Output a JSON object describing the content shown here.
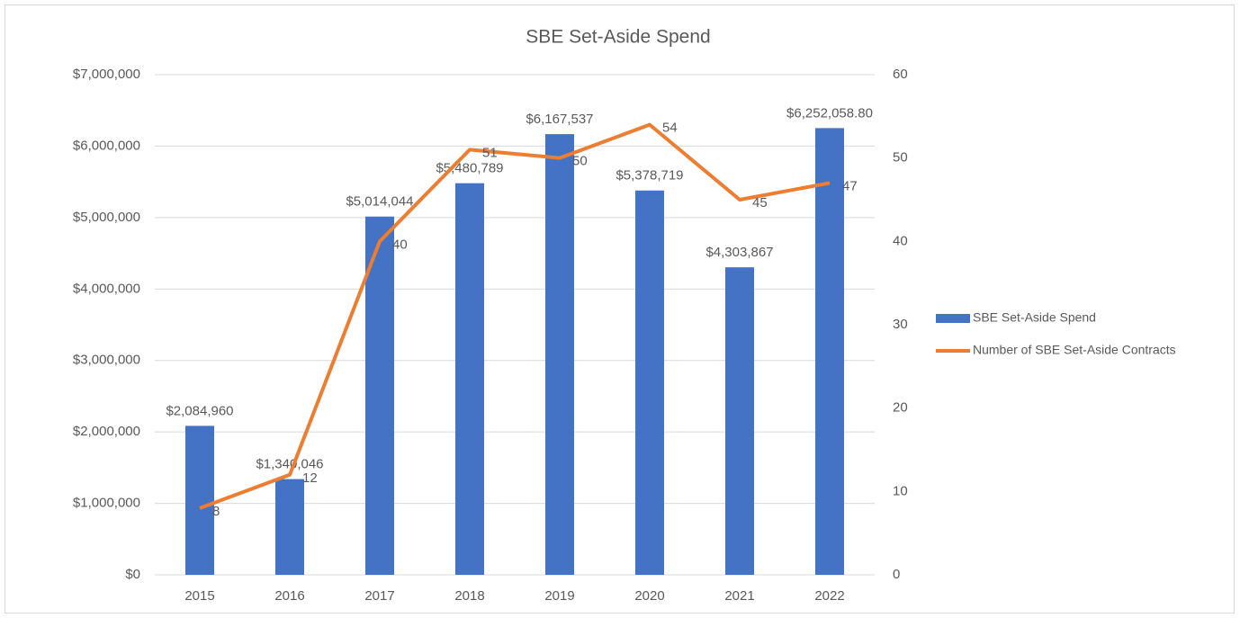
{
  "chart_data": {
    "type": "bar",
    "title": "SBE Set-Aside Spend",
    "categories": [
      "2015",
      "2016",
      "2017",
      "2018",
      "2019",
      "2020",
      "2021",
      "2022"
    ],
    "series": [
      {
        "name": "SBE Set-Aside Spend",
        "type": "bar",
        "color": "#4472c4",
        "values": [
          2084960,
          1340046,
          5014044,
          5480789,
          6167537,
          5378719,
          4303867,
          6252058.8
        ],
        "value_labels": [
          "$2,084,960",
          "$1,340,046",
          "$5,014,044",
          "$5,480,789",
          "$6,167,537",
          "$5,378,719",
          "$4,303,867",
          "$6,252,058.80"
        ]
      },
      {
        "name": "Number of SBE Set-Aside Contracts",
        "type": "line",
        "color": "#ed7d31",
        "axis": "y2",
        "values": [
          8,
          12,
          40,
          51,
          50,
          54,
          45,
          47
        ]
      }
    ],
    "ylim": [
      0,
      7000000
    ],
    "yticks": [
      {
        "value": 0,
        "label": "$0"
      },
      {
        "value": 1000000,
        "label": "$1,000,000"
      },
      {
        "value": 2000000,
        "label": "$2,000,000"
      },
      {
        "value": 3000000,
        "label": "$3,000,000"
      },
      {
        "value": 4000000,
        "label": "$4,000,000"
      },
      {
        "value": 5000000,
        "label": "$5,000,000"
      },
      {
        "value": 6000000,
        "label": "$6,000,000"
      },
      {
        "value": 7000000,
        "label": "$7,000,000"
      }
    ],
    "y2lim": [
      0,
      60
    ],
    "y2ticks": [
      0,
      10,
      20,
      30,
      40,
      50,
      60
    ],
    "grid": true,
    "legend": "right"
  }
}
